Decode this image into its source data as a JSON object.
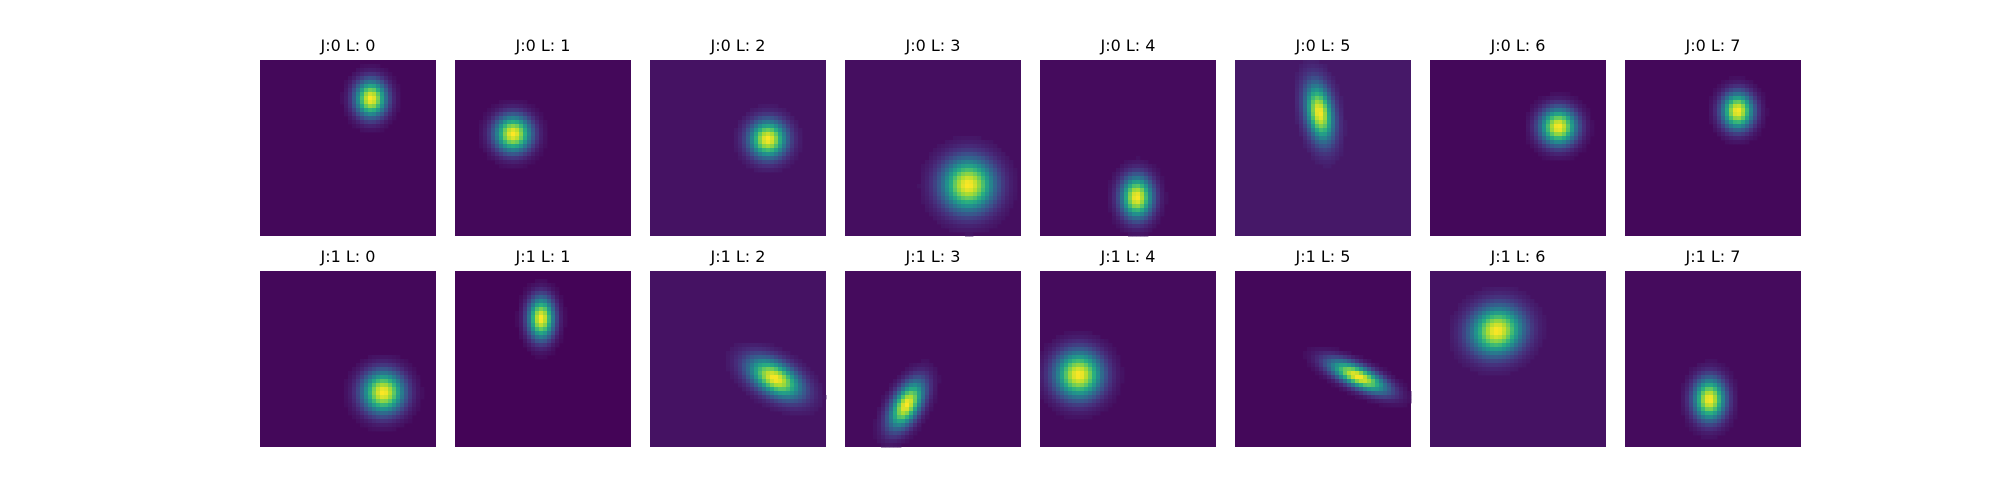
{
  "chart_data": {
    "type": "heatmap",
    "colormap": "viridis",
    "background_level": 0.0,
    "panels": [
      {
        "title": "J:0 L: 0",
        "cx": 0.63,
        "cy": 0.22,
        "sx": 0.06,
        "sy": 0.07,
        "angle": 0,
        "bg": 0.02
      },
      {
        "title": "J:0 L: 1",
        "cx": 0.33,
        "cy": 0.42,
        "sx": 0.07,
        "sy": 0.07,
        "angle": 0,
        "bg": 0.02
      },
      {
        "title": "J:0 L: 2",
        "cx": 0.67,
        "cy": 0.45,
        "sx": 0.07,
        "sy": 0.07,
        "angle": 0,
        "bg": 0.05
      },
      {
        "title": "J:0 L: 3",
        "cx": 0.7,
        "cy": 0.71,
        "sx": 0.1,
        "sy": 0.1,
        "angle": 0,
        "bg": 0.04
      },
      {
        "title": "J:0 L: 4",
        "cx": 0.55,
        "cy": 0.78,
        "sx": 0.06,
        "sy": 0.08,
        "angle": 0,
        "bg": 0.03
      },
      {
        "title": "J:0 L: 5",
        "cx": 0.48,
        "cy": 0.3,
        "sx": 0.05,
        "sy": 0.11,
        "angle": -10,
        "bg": 0.07
      },
      {
        "title": "J:0 L: 6",
        "cx": 0.73,
        "cy": 0.38,
        "sx": 0.07,
        "sy": 0.07,
        "angle": 0,
        "bg": 0.02
      },
      {
        "title": "J:0 L: 7",
        "cx": 0.64,
        "cy": 0.29,
        "sx": 0.06,
        "sy": 0.07,
        "angle": 0,
        "bg": 0.02
      },
      {
        "title": "J:1 L: 0",
        "cx": 0.7,
        "cy": 0.69,
        "sx": 0.08,
        "sy": 0.08,
        "angle": 0,
        "bg": 0.02
      },
      {
        "title": "J:1 L: 1",
        "cx": 0.49,
        "cy": 0.27,
        "sx": 0.05,
        "sy": 0.08,
        "angle": 0,
        "bg": 0.01
      },
      {
        "title": "J:1 L: 2",
        "cx": 0.71,
        "cy": 0.61,
        "sx": 0.11,
        "sy": 0.06,
        "angle": 30,
        "bg": 0.05
      },
      {
        "title": "J:1 L: 3",
        "cx": 0.35,
        "cy": 0.76,
        "sx": 0.05,
        "sy": 0.1,
        "angle": 30,
        "bg": 0.03
      },
      {
        "title": "J:1 L: 4",
        "cx": 0.22,
        "cy": 0.59,
        "sx": 0.09,
        "sy": 0.09,
        "angle": 0,
        "bg": 0.03
      },
      {
        "title": "J:1 L: 5",
        "cx": 0.7,
        "cy": 0.6,
        "sx": 0.12,
        "sy": 0.04,
        "angle": 25,
        "bg": 0.02
      },
      {
        "title": "J:1 L: 6",
        "cx": 0.38,
        "cy": 0.34,
        "sx": 0.1,
        "sy": 0.09,
        "angle": -20,
        "bg": 0.05
      },
      {
        "title": "J:1 L: 7",
        "cx": 0.48,
        "cy": 0.73,
        "sx": 0.06,
        "sy": 0.08,
        "angle": 0,
        "bg": 0.03
      }
    ]
  }
}
